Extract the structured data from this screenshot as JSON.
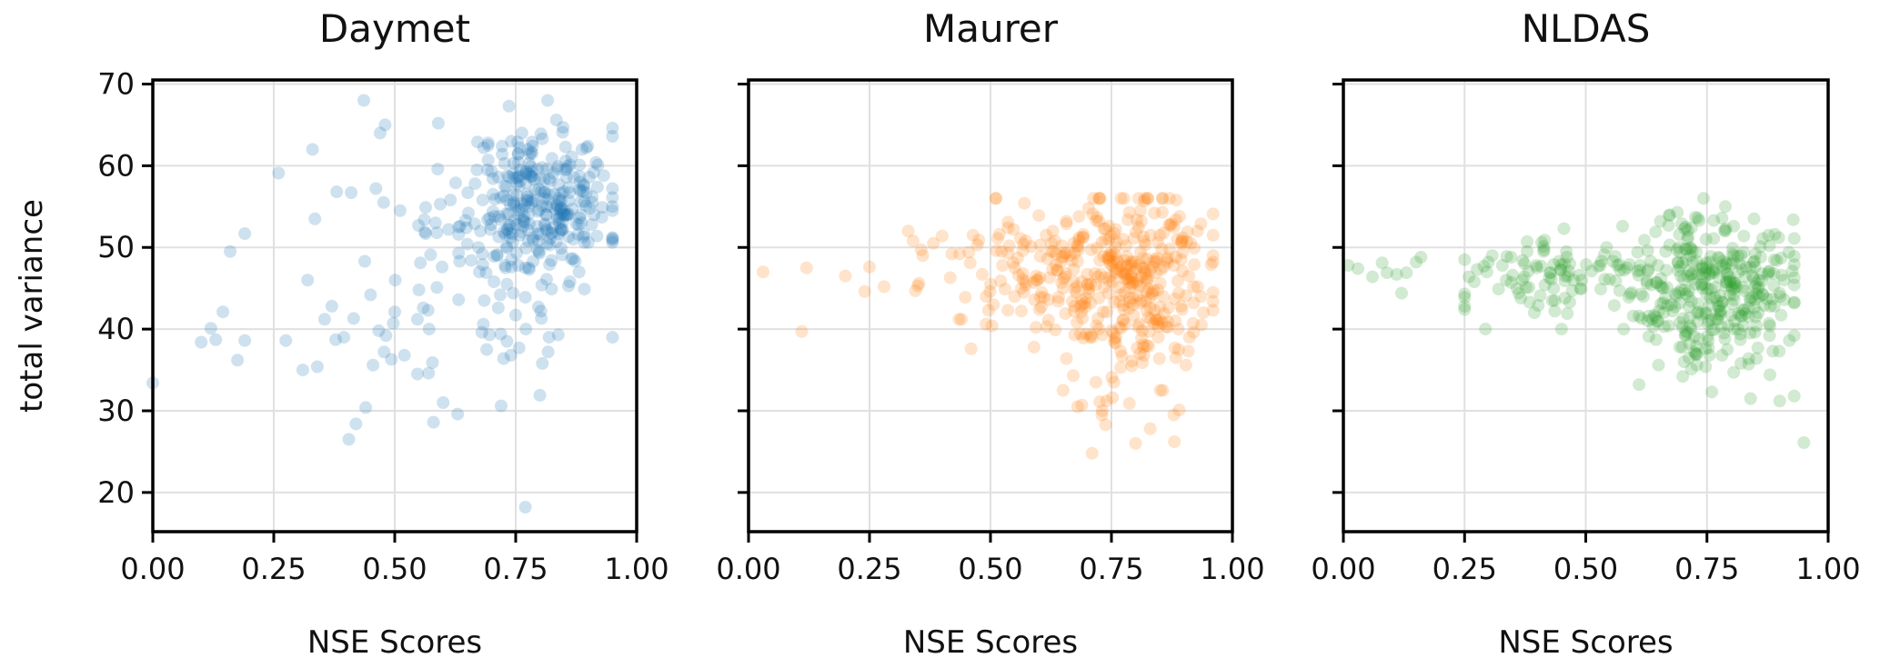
{
  "chart_data": [
    {
      "type": "scatter",
      "title": "Daymet",
      "xlabel": "NSE Scores",
      "ylabel": "total variance",
      "xlim": [
        0.0,
        1.0
      ],
      "ylim": [
        15.2,
        70.5
      ],
      "xticks": [
        "0.00",
        "0.25",
        "0.50",
        "0.75",
        "1.00"
      ],
      "yticks": [
        "20",
        "30",
        "40",
        "50",
        "60",
        "70"
      ],
      "grid": true,
      "color": "#1f77b4",
      "points": []
    },
    {
      "type": "scatter",
      "title": "Maurer",
      "xlabel": "NSE Scores",
      "ylabel": "",
      "xlim": [
        0.0,
        1.0
      ],
      "ylim": [
        15.2,
        70.5
      ],
      "xticks": [
        "0.00",
        "0.25",
        "0.50",
        "0.75",
        "1.00"
      ],
      "yticks": [],
      "grid": true,
      "color": "#ff7f0e",
      "points": []
    },
    {
      "type": "scatter",
      "title": "NLDAS",
      "xlabel": "NSE Scores",
      "ylabel": "",
      "xlim": [
        0.0,
        1.0
      ],
      "ylim": [
        15.2,
        70.5
      ],
      "xticks": [
        "0.00",
        "0.25",
        "0.50",
        "0.75",
        "1.00"
      ],
      "yticks": [],
      "grid": true,
      "color": "#2ca02c",
      "points": []
    }
  ]
}
